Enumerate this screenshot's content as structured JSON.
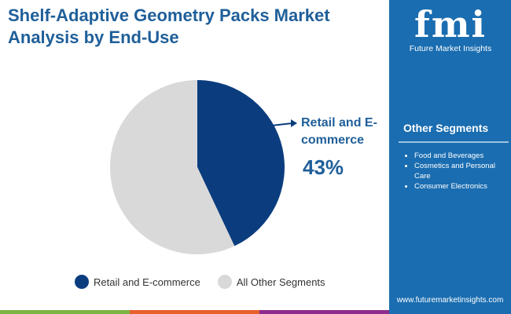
{
  "title": "Shelf-Adaptive Geometry Packs Market Analysis by End-Use",
  "logo": {
    "mark": "fmi",
    "text": "Future Market Insights"
  },
  "sidebar": {
    "other_title": "Other Segments",
    "items": [
      "Food and Beverages",
      "Cosmetics and Personal Care",
      "Consumer Electronics"
    ],
    "url": "www.futuremarketinsights.com"
  },
  "chart_data": {
    "type": "pie",
    "series": [
      {
        "name": "Retail and E-commerce",
        "value": 43,
        "color": "#0b3d7e"
      },
      {
        "name": "All Other Segments",
        "value": 57,
        "color": "#d9d9d9"
      }
    ],
    "callout": {
      "label": "Retail and E-commerce",
      "value": "43%"
    },
    "legend_position": "bottom"
  },
  "colors": {
    "accent": "#1f5f99",
    "sidebar": "#1a6db0",
    "stripes": [
      "#7cb342",
      "#e8602c",
      "#8e2b8e"
    ]
  }
}
